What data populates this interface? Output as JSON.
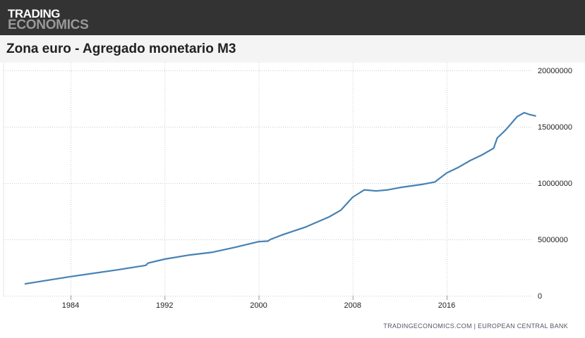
{
  "header": {
    "logo_line1": "TRADING",
    "logo_line2": "ECONOMICS"
  },
  "title": "Zona euro - Agregado monetario M3",
  "source": "TRADINGECONOMICS.COM  |  EUROPEAN CENTRAL BANK",
  "chart_data": {
    "type": "line",
    "title": "Zona euro - Agregado monetario M3",
    "xlabel": "",
    "ylabel": "",
    "xlim": [
      1980,
      2023.8
    ],
    "ylim": [
      0,
      20000000
    ],
    "x_ticks": [
      1984,
      1992,
      2000,
      2008,
      2016
    ],
    "y_ticks": [
      0,
      5000000,
      10000000,
      15000000,
      20000000
    ],
    "grid": true,
    "color": "#4682b4",
    "series": [
      {
        "name": "M3",
        "x": [
          1980.1,
          1984,
          1988,
          1990.4,
          1990.6,
          1992,
          1994,
          1996,
          1998,
          2000,
          2000.8,
          2001,
          2002,
          2004,
          2006,
          2007,
          2008,
          2009,
          2010,
          2011,
          2012,
          2013,
          2014,
          2015,
          2016,
          2017,
          2018,
          2019,
          2020,
          2020.3,
          2021,
          2022,
          2022.6,
          2023,
          2023.6
        ],
        "values": [
          1050000,
          1700000,
          2300000,
          2700000,
          2900000,
          3250000,
          3600000,
          3850000,
          4300000,
          4800000,
          4850000,
          5000000,
          5400000,
          6100000,
          7000000,
          7600000,
          8750000,
          9400000,
          9300000,
          9400000,
          9600000,
          9750000,
          9900000,
          10100000,
          10900000,
          11400000,
          12000000,
          12500000,
          13100000,
          14000000,
          14700000,
          15900000,
          16250000,
          16100000,
          15950000
        ]
      }
    ]
  }
}
